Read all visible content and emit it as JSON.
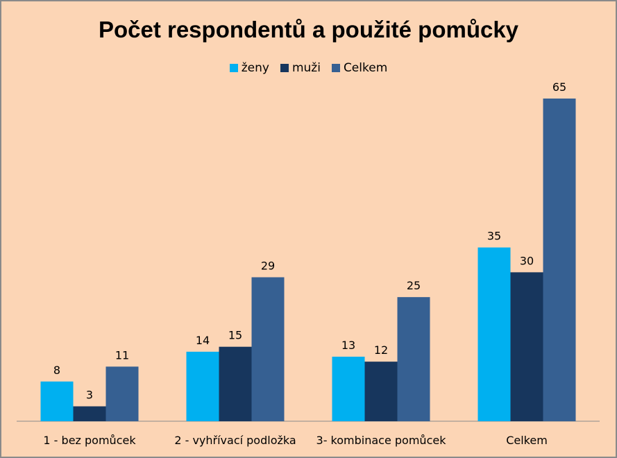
{
  "chart_data": {
    "type": "bar",
    "title": "Počet respondentů a použité pomůcky",
    "categories": [
      "1 - bez pomůcek",
      "2 - vyhřívací podložka",
      "3- kombinace pomůcek",
      "Celkem"
    ],
    "series": [
      {
        "name": "ženy",
        "values": [
          8,
          14,
          13,
          35
        ],
        "color": "#00b0f0"
      },
      {
        "name": "muži",
        "values": [
          3,
          15,
          12,
          30
        ],
        "color": "#17365d"
      },
      {
        "name": "Celkem",
        "values": [
          11,
          29,
          25,
          65
        ],
        "color": "#366092"
      }
    ],
    "ylim": [
      0,
      70
    ],
    "legend": "top",
    "grid": false
  }
}
